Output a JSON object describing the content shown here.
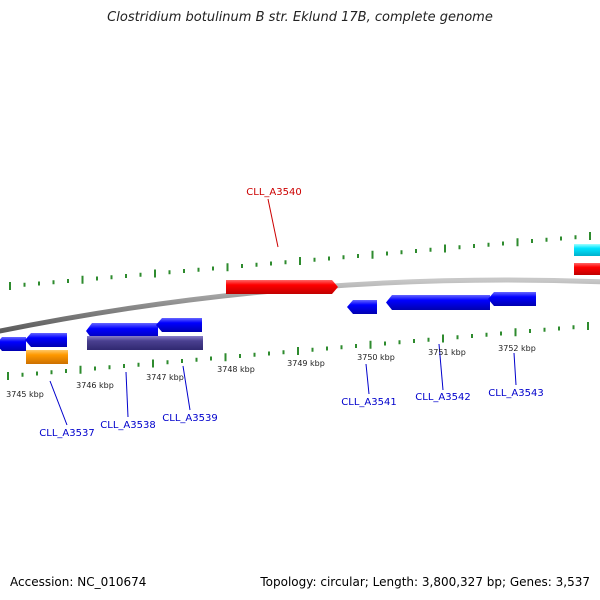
{
  "title": "Clostridium botulinum B str. Eklund 17B, complete genome",
  "footer": {
    "accession": "Accession: NC_010674",
    "summary": "Topology: circular; Length: 3,800,327 bp; Genes: 3,537"
  },
  "colors": {
    "backbone": "#8a8a8a",
    "tick": "#2e8b2e",
    "forward_gene": "#ff0000",
    "reverse_gene": "#0000ff",
    "dark_gene": "#4a4090",
    "orange_gene": "#ff9900",
    "cyan_gene": "#00e5ff",
    "label_forward": "#cc0000",
    "label_reverse": "#0000cc"
  },
  "kbp_labels": [
    "3745 kbp",
    "3746 kbp",
    "3747 kbp",
    "3748 kbp",
    "3749 kbp",
    "3750 kbp",
    "3751 kbp",
    "3752 kbp"
  ],
  "gene_labels": {
    "top": [
      "CLL_A3540"
    ],
    "bottom": [
      "CLL_A3537",
      "CLL_A3538",
      "CLL_A3539",
      "CLL_A3541",
      "CLL_A3542",
      "CLL_A3543"
    ]
  }
}
